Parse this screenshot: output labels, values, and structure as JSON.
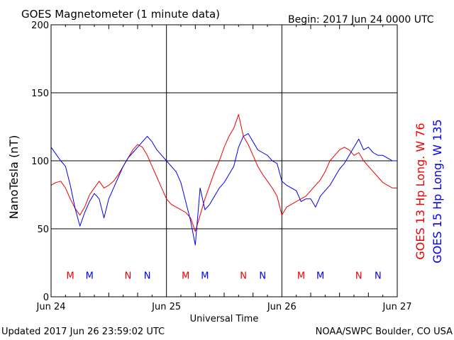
{
  "header": {
    "title": "GOES Magnetometer (1 minute data)",
    "begin": "Begin:  2017 Jun 24 0000 UTC"
  },
  "footer": {
    "updated": "Updated 2017 Jun 26 23:59:02 UTC",
    "credit": "NOAA/SWPC Boulder, CO USA"
  },
  "colors": {
    "goes13": "#ee0000",
    "goes15": "#0000ee",
    "grid": "#000000"
  },
  "chart_data": {
    "type": "line",
    "title": "GOES Magnetometer (1 minute data)",
    "xlabel": "Universal Time",
    "ylabel": "NanoTesla (nT)",
    "ylim": [
      0,
      200
    ],
    "xlim": [
      0,
      72
    ],
    "x_unit": "hours since 2017 Jun 24 0000 UTC",
    "yticks": [
      0,
      50,
      100,
      150,
      200
    ],
    "xticks": [
      {
        "x": 0,
        "label": "Jun 24"
      },
      {
        "x": 24,
        "label": "Jun 25"
      },
      {
        "x": 48,
        "label": "Jun 26"
      },
      {
        "x": 72,
        "label": "Jun 27"
      }
    ],
    "grid": true,
    "legend": "right-vertical",
    "series": [
      {
        "name": "GOES 13 Hp  Long. W 76",
        "color": "#ee0000",
        "points": [
          [
            0,
            82
          ],
          [
            1,
            84
          ],
          [
            2,
            85
          ],
          [
            3,
            80
          ],
          [
            4,
            72
          ],
          [
            5,
            65
          ],
          [
            6,
            60
          ],
          [
            7,
            66
          ],
          [
            8,
            75
          ],
          [
            9,
            80
          ],
          [
            10,
            85
          ],
          [
            11,
            80
          ],
          [
            12,
            82
          ],
          [
            13,
            85
          ],
          [
            14,
            90
          ],
          [
            15,
            96
          ],
          [
            16,
            102
          ],
          [
            17,
            108
          ],
          [
            18,
            112
          ],
          [
            19,
            110
          ],
          [
            20,
            104
          ],
          [
            21,
            96
          ],
          [
            22,
            88
          ],
          [
            23,
            80
          ],
          [
            24,
            72
          ],
          [
            25,
            68
          ],
          [
            26,
            66
          ],
          [
            27,
            64
          ],
          [
            28,
            62
          ],
          [
            29,
            58
          ],
          [
            30,
            48
          ],
          [
            31,
            60
          ],
          [
            32,
            72
          ],
          [
            33,
            82
          ],
          [
            34,
            92
          ],
          [
            35,
            100
          ],
          [
            36,
            110
          ],
          [
            37,
            118
          ],
          [
            38,
            124
          ],
          [
            39,
            134
          ],
          [
            40,
            118
          ],
          [
            41,
            112
          ],
          [
            42,
            104
          ],
          [
            43,
            96
          ],
          [
            44,
            90
          ],
          [
            45,
            85
          ],
          [
            46,
            80
          ],
          [
            47,
            74
          ],
          [
            48,
            60
          ],
          [
            49,
            66
          ],
          [
            50,
            68
          ],
          [
            51,
            70
          ],
          [
            52,
            72
          ],
          [
            53,
            74
          ],
          [
            54,
            78
          ],
          [
            55,
            82
          ],
          [
            56,
            86
          ],
          [
            57,
            92
          ],
          [
            58,
            100
          ],
          [
            59,
            104
          ],
          [
            60,
            108
          ],
          [
            61,
            110
          ],
          [
            62,
            108
          ],
          [
            63,
            104
          ],
          [
            64,
            106
          ],
          [
            65,
            100
          ],
          [
            66,
            96
          ],
          [
            67,
            92
          ],
          [
            68,
            88
          ],
          [
            69,
            84
          ],
          [
            70,
            82
          ],
          [
            71,
            80
          ],
          [
            72,
            80
          ]
        ]
      },
      {
        "name": "GOES 15 Hp  Long. W 135",
        "color": "#0000ee",
        "points": [
          [
            0,
            110
          ],
          [
            1,
            105
          ],
          [
            2,
            100
          ],
          [
            3,
            96
          ],
          [
            4,
            82
          ],
          [
            5,
            65
          ],
          [
            6,
            52
          ],
          [
            7,
            62
          ],
          [
            8,
            70
          ],
          [
            9,
            76
          ],
          [
            10,
            72
          ],
          [
            11,
            58
          ],
          [
            12,
            72
          ],
          [
            13,
            80
          ],
          [
            14,
            88
          ],
          [
            15,
            96
          ],
          [
            16,
            102
          ],
          [
            17,
            106
          ],
          [
            18,
            110
          ],
          [
            19,
            114
          ],
          [
            20,
            118
          ],
          [
            21,
            114
          ],
          [
            22,
            108
          ],
          [
            23,
            104
          ],
          [
            24,
            100
          ],
          [
            25,
            96
          ],
          [
            26,
            92
          ],
          [
            27,
            84
          ],
          [
            28,
            70
          ],
          [
            29,
            56
          ],
          [
            30,
            38
          ],
          [
            31,
            80
          ],
          [
            32,
            64
          ],
          [
            33,
            68
          ],
          [
            34,
            74
          ],
          [
            35,
            80
          ],
          [
            36,
            84
          ],
          [
            37,
            90
          ],
          [
            38,
            96
          ],
          [
            39,
            110
          ],
          [
            40,
            118
          ],
          [
            41,
            120
          ],
          [
            42,
            114
          ],
          [
            43,
            108
          ],
          [
            44,
            106
          ],
          [
            45,
            104
          ],
          [
            46,
            100
          ],
          [
            47,
            98
          ],
          [
            48,
            85
          ],
          [
            49,
            82
          ],
          [
            50,
            80
          ],
          [
            51,
            78
          ],
          [
            52,
            70
          ],
          [
            53,
            72
          ],
          [
            54,
            72
          ],
          [
            55,
            66
          ],
          [
            56,
            74
          ],
          [
            57,
            78
          ],
          [
            58,
            82
          ],
          [
            59,
            88
          ],
          [
            60,
            94
          ],
          [
            61,
            98
          ],
          [
            62,
            104
          ],
          [
            63,
            110
          ],
          [
            64,
            116
          ],
          [
            65,
            108
          ],
          [
            66,
            110
          ],
          [
            67,
            106
          ],
          [
            68,
            104
          ],
          [
            69,
            104
          ],
          [
            70,
            102
          ],
          [
            71,
            100
          ],
          [
            72,
            100
          ]
        ]
      }
    ],
    "markers": [
      {
        "label": "M",
        "x": 4,
        "color": "#ee0000"
      },
      {
        "label": "M",
        "x": 8,
        "color": "#0000ee"
      },
      {
        "label": "N",
        "x": 16,
        "color": "#ee0000"
      },
      {
        "label": "N",
        "x": 20,
        "color": "#0000ee"
      },
      {
        "label": "M",
        "x": 28,
        "color": "#ee0000"
      },
      {
        "label": "M",
        "x": 32,
        "color": "#0000ee"
      },
      {
        "label": "N",
        "x": 40,
        "color": "#ee0000"
      },
      {
        "label": "N",
        "x": 44,
        "color": "#0000ee"
      },
      {
        "label": "M",
        "x": 52,
        "color": "#ee0000"
      },
      {
        "label": "M",
        "x": 56,
        "color": "#0000ee"
      },
      {
        "label": "N",
        "x": 64,
        "color": "#ee0000"
      },
      {
        "label": "N",
        "x": 68,
        "color": "#0000ee"
      }
    ],
    "marker_level": 16
  }
}
